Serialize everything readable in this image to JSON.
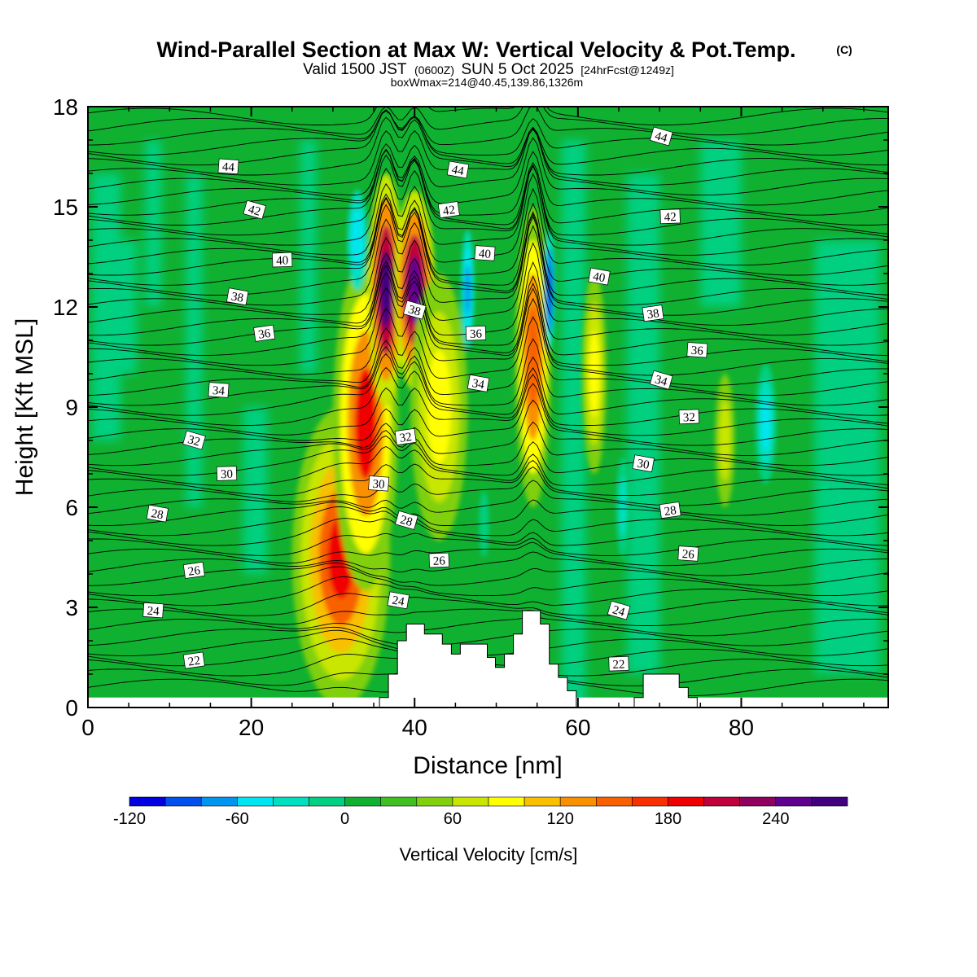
{
  "chart_data": {
    "type": "contour",
    "title": "Wind-Parallel Section at Max W: Vertical Velocity & Pot.Temp.",
    "copyright": "(C)",
    "subtitle_pre": "Valid 1500 JST",
    "subtitle_utc": "(0600Z)",
    "subtitle_date": "SUN 5 Oct 2025",
    "subtitle_fcst": "[24hrFcst@1249z]",
    "subtitle2": "boxWmax=214@40.45,139.86,1326m",
    "xlabel": "Distance [nm]",
    "ylabel": "Height [Kft MSL]",
    "xlim": [
      0,
      98
    ],
    "ylim": [
      0,
      18
    ],
    "xticks": [
      0,
      20,
      40,
      60,
      80
    ],
    "yticks": [
      0,
      3,
      6,
      9,
      12,
      15,
      18
    ],
    "colorbar": {
      "title": "Vertical Velocity [cm/s]",
      "ticks": [
        -120,
        -60,
        0,
        60,
        120,
        180,
        240
      ],
      "levels": [
        -120,
        -100,
        -80,
        -60,
        -40,
        -20,
        0,
        20,
        40,
        60,
        80,
        100,
        120,
        140,
        160,
        180,
        200,
        220,
        240,
        260,
        280
      ],
      "colors": [
        "#0000e0",
        "#0050f0",
        "#0096f0",
        "#00e6f0",
        "#00e0c0",
        "#00d080",
        "#10b030",
        "#40c020",
        "#80d010",
        "#c8e600",
        "#ffff00",
        "#f8c000",
        "#f89000",
        "#f86000",
        "#f83000",
        "#f00000",
        "#c0003a",
        "#900060",
        "#600090",
        "#400080"
      ]
    },
    "updraft_cores": [
      {
        "x": 31,
        "z": 4.5,
        "w": 190
      },
      {
        "x": 36.5,
        "z": 13,
        "w": 270
      },
      {
        "x": 40,
        "z": 13,
        "w": 250
      },
      {
        "x": 54.5,
        "z": 11,
        "w": 150
      },
      {
        "x": 62,
        "z": 10,
        "w": 80
      },
      {
        "x": 78,
        "z": 8,
        "w": 60
      }
    ],
    "downdraft_cores": [
      {
        "x": 33,
        "z": 14,
        "w": -60
      },
      {
        "x": 46.5,
        "z": 12.5,
        "w": -90
      },
      {
        "x": 56.5,
        "z": 12.5,
        "w": -110
      },
      {
        "x": 83,
        "z": 8.5,
        "w": -60
      }
    ],
    "theta_labels": [
      {
        "value": "22",
        "x": 13,
        "z": 1.4
      },
      {
        "value": "22",
        "x": 65,
        "z": 1.3
      },
      {
        "value": "24",
        "x": 8,
        "z": 2.9
      },
      {
        "value": "24",
        "x": 38,
        "z": 3.2
      },
      {
        "value": "24",
        "x": 65,
        "z": 2.9
      },
      {
        "value": "26",
        "x": 13,
        "z": 4.1
      },
      {
        "value": "26",
        "x": 43,
        "z": 4.4
      },
      {
        "value": "26",
        "x": 73.5,
        "z": 4.6
      },
      {
        "value": "28",
        "x": 8.5,
        "z": 5.8
      },
      {
        "value": "28",
        "x": 39,
        "z": 5.6
      },
      {
        "value": "28",
        "x": 71.3,
        "z": 5.9
      },
      {
        "value": "30",
        "x": 17,
        "z": 7.0
      },
      {
        "value": "30",
        "x": 35.6,
        "z": 6.7
      },
      {
        "value": "30",
        "x": 68,
        "z": 7.3
      },
      {
        "value": "32",
        "x": 13,
        "z": 8.0
      },
      {
        "value": "32",
        "x": 38.9,
        "z": 8.1
      },
      {
        "value": "32",
        "x": 73.6,
        "z": 8.7
      },
      {
        "value": "34",
        "x": 16,
        "z": 9.5
      },
      {
        "value": "34",
        "x": 47.8,
        "z": 9.7
      },
      {
        "value": "34",
        "x": 70.2,
        "z": 9.8
      },
      {
        "value": "36",
        "x": 21.6,
        "z": 11.2
      },
      {
        "value": "36",
        "x": 47.5,
        "z": 11.2
      },
      {
        "value": "36",
        "x": 74.6,
        "z": 10.7
      },
      {
        "value": "38",
        "x": 18.3,
        "z": 12.3
      },
      {
        "value": "38",
        "x": 40,
        "z": 11.9
      },
      {
        "value": "38",
        "x": 69.2,
        "z": 11.8
      },
      {
        "value": "40",
        "x": 23.8,
        "z": 13.4
      },
      {
        "value": "40",
        "x": 48.6,
        "z": 13.6
      },
      {
        "value": "40",
        "x": 62.6,
        "z": 12.9
      },
      {
        "value": "42",
        "x": 20.4,
        "z": 14.9
      },
      {
        "value": "42",
        "x": 44.2,
        "z": 14.9
      },
      {
        "value": "42",
        "x": 71.3,
        "z": 14.7
      },
      {
        "value": "44",
        "x": 17.2,
        "z": 16.2
      },
      {
        "value": "44",
        "x": 45.3,
        "z": 16.1
      },
      {
        "value": "44",
        "x": 70.2,
        "z": 17.1
      }
    ],
    "terrain": [
      [
        0,
        0
      ],
      [
        35.7,
        0
      ],
      [
        35.7,
        0.3
      ],
      [
        36.8,
        0.3
      ],
      [
        36.8,
        1.0
      ],
      [
        37.9,
        1.0
      ],
      [
        37.9,
        2.0
      ],
      [
        39,
        2.0
      ],
      [
        39,
        2.5
      ],
      [
        41.2,
        2.5
      ],
      [
        41.2,
        2.2
      ],
      [
        43.4,
        2.2
      ],
      [
        43.4,
        1.9
      ],
      [
        44.5,
        1.9
      ],
      [
        44.5,
        1.6
      ],
      [
        45.6,
        1.6
      ],
      [
        45.6,
        1.9
      ],
      [
        48.9,
        1.9
      ],
      [
        48.9,
        1.5
      ],
      [
        49.9,
        1.5
      ],
      [
        49.9,
        1.2
      ],
      [
        51,
        1.2
      ],
      [
        51,
        1.6
      ],
      [
        52.1,
        1.6
      ],
      [
        52.1,
        2.2
      ],
      [
        53.2,
        2.2
      ],
      [
        53.2,
        2.9
      ],
      [
        55.4,
        2.9
      ],
      [
        55.4,
        2.5
      ],
      [
        56.5,
        2.5
      ],
      [
        56.5,
        1.3
      ],
      [
        57.6,
        1.3
      ],
      [
        57.6,
        0.9
      ],
      [
        58.7,
        0.9
      ],
      [
        58.7,
        0.5
      ],
      [
        59.8,
        0.5
      ],
      [
        59.8,
        0
      ],
      [
        66.9,
        0
      ],
      [
        66.9,
        0.3
      ],
      [
        68,
        0.3
      ],
      [
        68,
        1.0
      ],
      [
        72.4,
        1.0
      ],
      [
        72.4,
        0.6
      ],
      [
        73.5,
        0.6
      ],
      [
        73.5,
        0.3
      ],
      [
        74.6,
        0.3
      ],
      [
        74.6,
        0
      ],
      [
        98,
        0
      ]
    ]
  }
}
